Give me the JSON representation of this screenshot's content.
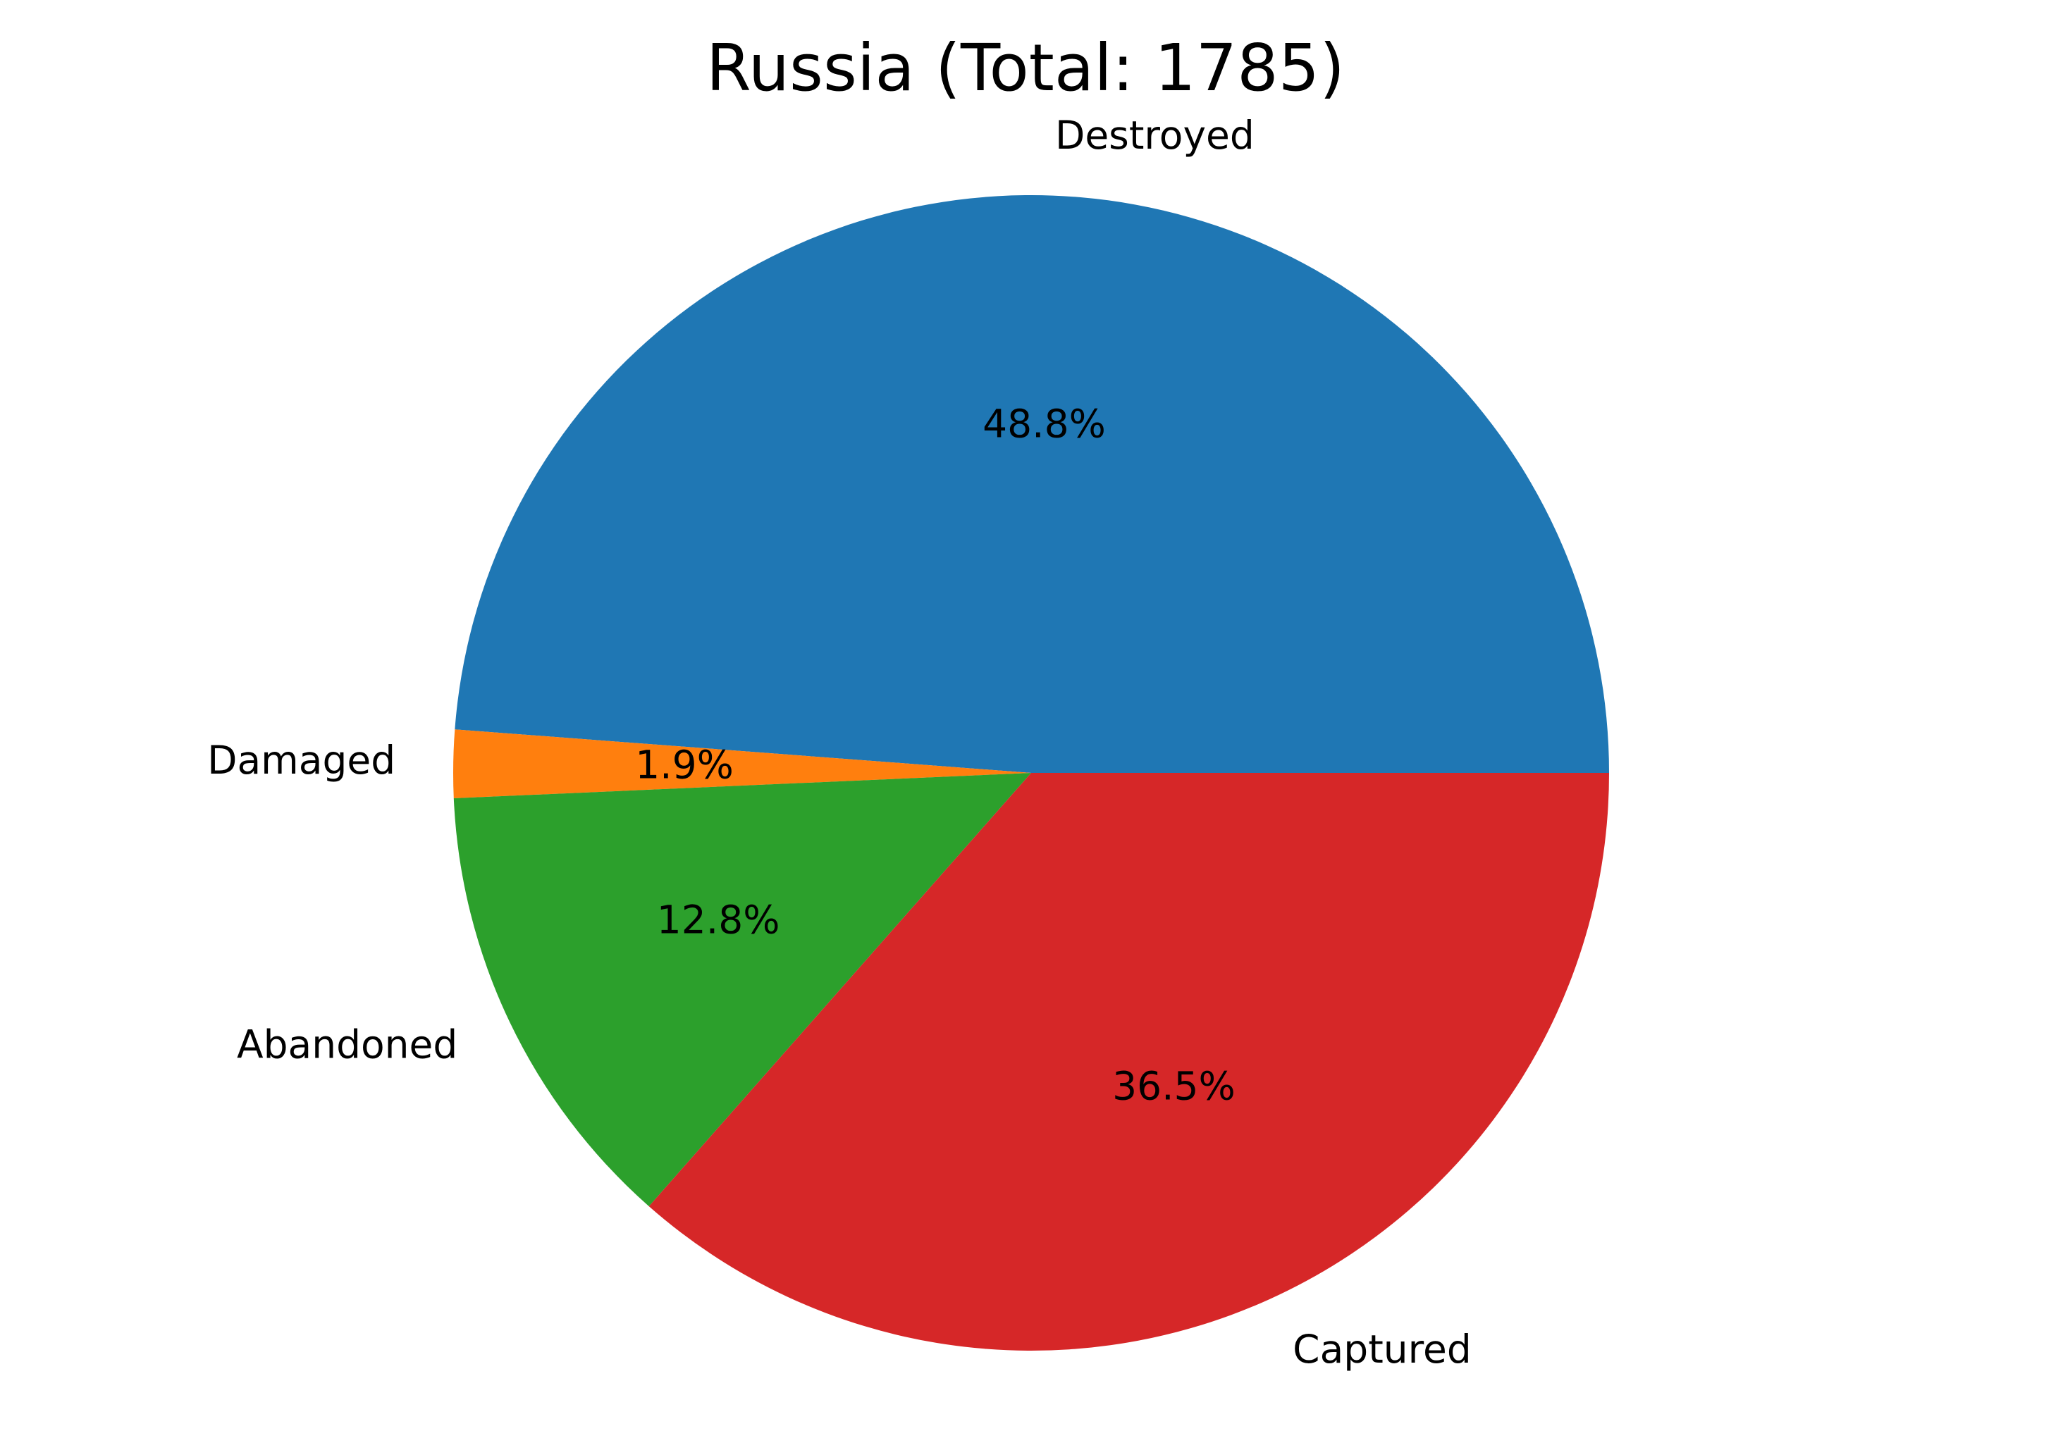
{
  "chart_data": {
    "type": "pie",
    "title": "Russia (Total: 1785)",
    "start_angle_deg": 0,
    "direction": "counterclockwise",
    "slices": [
      {
        "label": "Destroyed",
        "value": 48.8,
        "percent_label": "48.8%",
        "color": "#1f77b4"
      },
      {
        "label": "Damaged",
        "value": 1.9,
        "percent_label": "1.9%",
        "color": "#ff7f0e"
      },
      {
        "label": "Abandoned",
        "value": 12.8,
        "percent_label": "12.8%",
        "color": "#2ca02c"
      },
      {
        "label": "Captured",
        "value": 36.5,
        "percent_label": "36.5%",
        "color": "#d62728"
      }
    ]
  }
}
